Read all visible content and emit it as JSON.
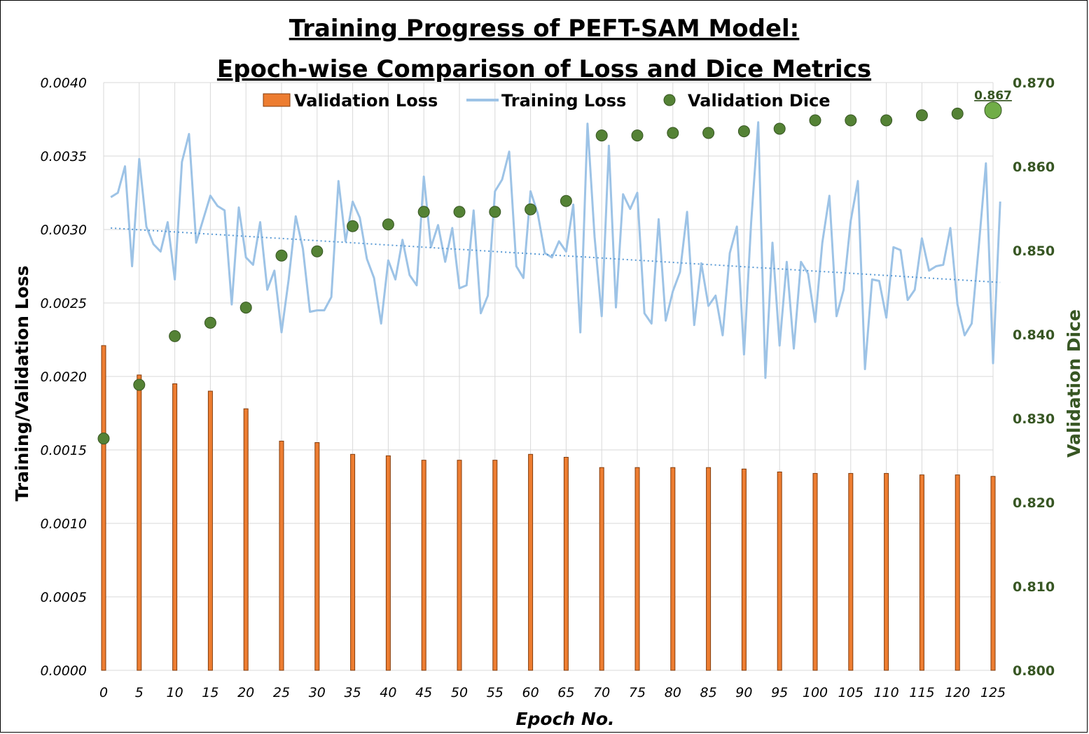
{
  "chart_data": {
    "type": "bar",
    "title_lines": [
      "Training Progress of PEFT-SAM Model:",
      "Epoch-wise Comparison of Loss and Dice Metrics"
    ],
    "xlabel": "Epoch No.",
    "ylabel_left": "Training/Validation Loss",
    "ylabel_right": "Validation Dice",
    "xlim": [
      0,
      125
    ],
    "ylim_left": [
      0,
      0.004
    ],
    "ylim_right": [
      0.8,
      0.87
    ],
    "x_ticks": [
      "0",
      "5",
      "10",
      "15",
      "20",
      "25",
      "30",
      "35",
      "40",
      "45",
      "50",
      "55",
      "60",
      "65",
      "70",
      "75",
      "80",
      "85",
      "90",
      "95",
      "100",
      "105",
      "110",
      "115",
      "120",
      "125"
    ],
    "y_ticks_left": [
      "0.0000",
      "0.0005",
      "0.0010",
      "0.0015",
      "0.0020",
      "0.0025",
      "0.0030",
      "0.0035",
      "0.0040"
    ],
    "y_ticks_right": [
      "0.800",
      "0.810",
      "0.820",
      "0.830",
      "0.840",
      "0.850",
      "0.860",
      "0.870"
    ],
    "grid": true,
    "legend_position": "top",
    "colors": {
      "validation_loss": "#ED7D31",
      "validation_loss_edge": "#843C0C",
      "training_loss": "#9DC3E6",
      "trend": "#5B9BD5",
      "validation_dice": "#548235",
      "validation_dice_highlight": "#70AD47",
      "grid": "#D9D9D9",
      "dice_axis": "#375623"
    },
    "series": [
      {
        "name": "Validation Loss",
        "kind": "bar",
        "axis": "left",
        "x": [
          0,
          5,
          10,
          15,
          20,
          25,
          30,
          35,
          40,
          45,
          50,
          55,
          60,
          65,
          70,
          75,
          80,
          85,
          90,
          95,
          100,
          105,
          110,
          115,
          120,
          125
        ],
        "values": [
          0.00221,
          0.00201,
          0.00195,
          0.0019,
          0.00178,
          0.00156,
          0.00155,
          0.00147,
          0.00146,
          0.00143,
          0.00143,
          0.00143,
          0.00147,
          0.00145,
          0.00138,
          0.00138,
          0.00138,
          0.00138,
          0.00137,
          0.00135,
          0.00134,
          0.00134,
          0.00134,
          0.00133,
          0.00133,
          0.00132
        ]
      },
      {
        "name": "Training Loss",
        "kind": "line",
        "axis": "left",
        "x_start": 1,
        "values": [
          0.00322,
          0.00325,
          0.00343,
          0.00275,
          0.00348,
          0.00302,
          0.0029,
          0.00285,
          0.00305,
          0.00266,
          0.00346,
          0.00365,
          0.00291,
          0.00307,
          0.00323,
          0.00316,
          0.00313,
          0.00249,
          0.00315,
          0.00281,
          0.00276,
          0.00305,
          0.00259,
          0.00272,
          0.0023,
          0.00266,
          0.00309,
          0.00287,
          0.00244,
          0.00245,
          0.00245,
          0.00254,
          0.00333,
          0.00292,
          0.00319,
          0.00308,
          0.0028,
          0.00267,
          0.00236,
          0.00279,
          0.00266,
          0.00293,
          0.00269,
          0.00262,
          0.00336,
          0.00288,
          0.00303,
          0.00278,
          0.00301,
          0.0026,
          0.00262,
          0.00313,
          0.00243,
          0.00255,
          0.00326,
          0.00334,
          0.00353,
          0.00275,
          0.00267,
          0.00326,
          0.00311,
          0.00284,
          0.00281,
          0.00292,
          0.00285,
          0.00317,
          0.0023,
          0.00372,
          0.00295,
          0.00241,
          0.00357,
          0.00247,
          0.00324,
          0.00314,
          0.00325,
          0.00243,
          0.00236,
          0.00307,
          0.00238,
          0.00258,
          0.00271,
          0.00312,
          0.00235,
          0.00277,
          0.00248,
          0.00255,
          0.00228,
          0.00284,
          0.00302,
          0.00215,
          0.00305,
          0.00373,
          0.00199,
          0.00291,
          0.00221,
          0.00278,
          0.00219,
          0.00278,
          0.0027,
          0.00237,
          0.00291,
          0.00323,
          0.00241,
          0.00259,
          0.00306,
          0.00333,
          0.00205,
          0.00266,
          0.00265,
          0.0024,
          0.00288,
          0.00286,
          0.00252,
          0.00259,
          0.00294,
          0.00272,
          0.00275,
          0.00276,
          0.00301,
          0.00249,
          0.00228,
          0.00236,
          0.00289,
          0.00345,
          0.00209,
          0.00319
        ]
      },
      {
        "name": "Validation Dice",
        "kind": "scatter",
        "axis": "right",
        "x": [
          0,
          5,
          10,
          15,
          20,
          25,
          30,
          35,
          40,
          45,
          50,
          55,
          60,
          65,
          70,
          75,
          80,
          85,
          90,
          95,
          100,
          105,
          110,
          115,
          120,
          125
        ],
        "values": [
          0.8276,
          0.834,
          0.8398,
          0.8414,
          0.8432,
          0.8494,
          0.8499,
          0.8529,
          0.8531,
          0.8546,
          0.8546,
          0.8546,
          0.8549,
          0.8559,
          0.8637,
          0.8637,
          0.864,
          0.864,
          0.8642,
          0.8645,
          0.8655,
          0.8655,
          0.8655,
          0.8661,
          0.8663,
          0.8667
        ]
      }
    ],
    "trendline": {
      "series": "Training Loss",
      "kind": "linear",
      "start": 0.00301,
      "end": 0.00264
    },
    "annotation": {
      "text": "0.867",
      "x": 125,
      "series": "Validation Dice"
    }
  }
}
